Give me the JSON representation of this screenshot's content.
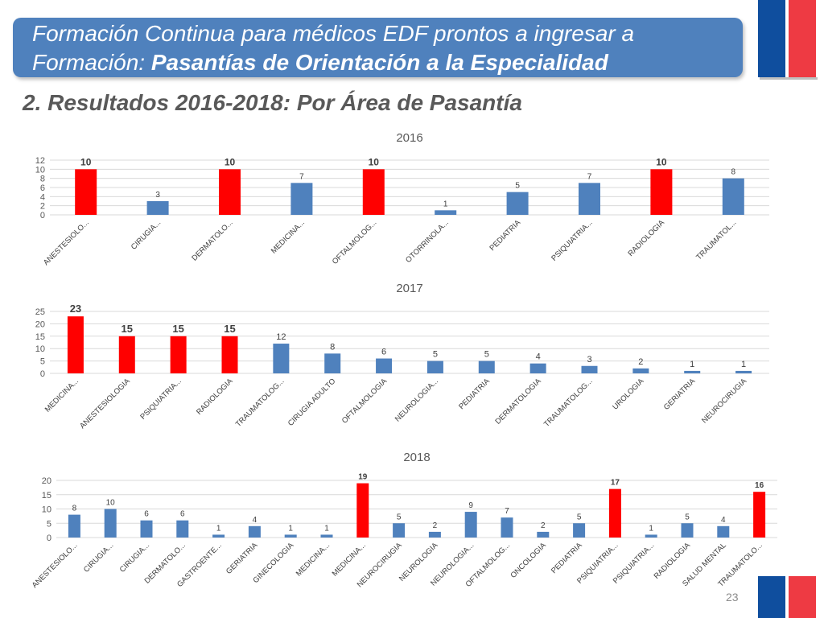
{
  "header": {
    "line1": "Formación Continua para médicos EDF prontos a ingresar a",
    "line2_plain": "Formación: ",
    "line2_bold": "Pasantías de Orientación a la Especialidad"
  },
  "subtitle": "2. Resultados 2016-2018: Por Área de Pasantía",
  "page_number": "23",
  "colors": {
    "blue": "#4f81bd",
    "red": "#ff0000",
    "header_bg": "#4f81bd",
    "flag_red": "#ee3a43",
    "flag_blue": "#0f4e9e"
  },
  "chart_data": [
    {
      "type": "bar",
      "title": "2016",
      "categories": [
        "ANESTESIOLO...",
        "CIRUGIA...",
        "DERMATOLO...",
        "MEDICINA...",
        "OFTALMOLOG...",
        "OTORRINOLA...",
        "PEDIATRIA",
        "PSIQUIATRIA...",
        "RADIOLOGIA",
        "TRAUMATOL..."
      ],
      "values": [
        10,
        3,
        10,
        7,
        10,
        1,
        5,
        7,
        10,
        8
      ],
      "highlight": [
        true,
        false,
        true,
        false,
        true,
        false,
        false,
        false,
        true,
        false
      ],
      "ylim": [
        0,
        12
      ],
      "yticks": [
        0,
        2,
        4,
        6,
        8,
        10,
        12
      ],
      "grid": true
    },
    {
      "type": "bar",
      "title": "2017",
      "categories": [
        "MEDICINA...",
        "ANESTESIOLOGIA",
        "PSIQUIATRIA...",
        "RADIOLOGIA",
        "TRAUMATOLOG...",
        "CIRUGIA ADULTO",
        "OFTALMOLOGIA",
        "NEUROLOGIA...",
        "PEDIATRIA",
        "DERMATOLOGIA",
        "TRAUMATOLOG...",
        "UROLOGIA",
        "GERIATRIA",
        "NEUROCIRUGIA"
      ],
      "values": [
        23,
        15,
        15,
        15,
        12,
        8,
        6,
        5,
        5,
        4,
        3,
        2,
        1,
        1
      ],
      "highlight": [
        true,
        true,
        true,
        true,
        false,
        false,
        false,
        false,
        false,
        false,
        false,
        false,
        false,
        false
      ],
      "ylim": [
        0,
        25
      ],
      "yticks": [
        0,
        5,
        10,
        15,
        20,
        25
      ],
      "grid": true
    },
    {
      "type": "bar",
      "title": "2018",
      "categories": [
        "ANESTESIOLO...",
        "CIRUGIA...",
        "CIRUGIA...",
        "DERMATOLO...",
        "GASTROENTE...",
        "GERIATRIA",
        "GINECOLOGIA",
        "MEDICINA...",
        "MEDICINA...",
        "NEUROCIRUGIA",
        "NEUROLOGIA",
        "NEUROLOGIA...",
        "OFTALMOLOG...",
        "ONCOLOGIA",
        "PEDIATRIA",
        "PSIQUIATRIA...",
        "PSIQUIATRIA...",
        "RADIOLOGIA",
        "SALUD MENTAL",
        "TRAUMATOLO..."
      ],
      "values": [
        8,
        10,
        6,
        6,
        1,
        4,
        1,
        1,
        19,
        5,
        2,
        9,
        7,
        2,
        5,
        17,
        1,
        5,
        4,
        16
      ],
      "highlight": [
        false,
        false,
        false,
        false,
        false,
        false,
        false,
        false,
        true,
        false,
        false,
        false,
        false,
        false,
        false,
        true,
        false,
        false,
        false,
        true
      ],
      "ylim": [
        0,
        20
      ],
      "yticks": [
        0,
        5,
        10,
        15,
        20
      ],
      "grid": true
    }
  ]
}
